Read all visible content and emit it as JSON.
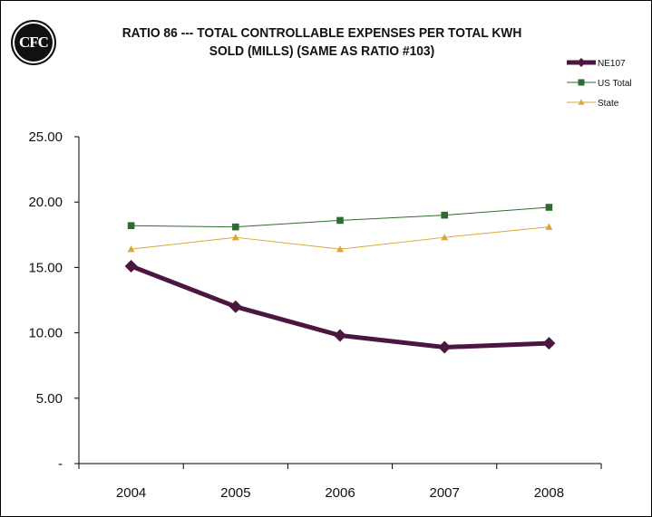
{
  "logo": {
    "text": "CFC"
  },
  "chart_data": {
    "type": "line",
    "title_lines": [
      "RATIO 86 --- TOTAL CONTROLLABLE EXPENSES PER TOTAL KWH",
      "SOLD (MILLS) (SAME AS RATIO #103)"
    ],
    "categories": [
      "2004",
      "2005",
      "2006",
      "2007",
      "2008"
    ],
    "ylim": [
      0,
      25
    ],
    "yticks": [
      0,
      5,
      10,
      15,
      20,
      25
    ],
    "ytick_labels": [
      "-",
      "5.00",
      "10.00",
      "15.00",
      "20.00",
      "25.00"
    ],
    "grid": false,
    "legend_position": "top-right",
    "series": [
      {
        "name": "NE107",
        "values": [
          15.1,
          12.0,
          9.8,
          8.9,
          9.2
        ],
        "color": "#4b1640",
        "marker": "diamond",
        "width": 5
      },
      {
        "name": "US Total",
        "values": [
          18.2,
          18.1,
          18.6,
          19.0,
          19.6
        ],
        "color": "#2e6b30",
        "marker": "square",
        "width": 1
      },
      {
        "name": "State",
        "values": [
          16.4,
          17.3,
          16.4,
          17.3,
          18.1
        ],
        "color": "#d9a53c",
        "marker": "triangle",
        "width": 1
      }
    ]
  }
}
